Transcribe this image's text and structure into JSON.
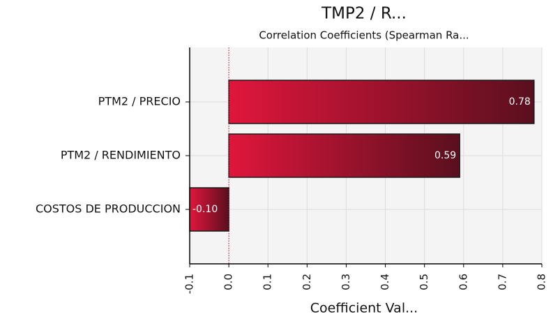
{
  "chart_data": {
    "type": "bar",
    "orientation": "horizontal",
    "title": "TMP2 / R...",
    "subtitle": "Correlation Coefficients (Spearman Ra...",
    "x_label": "Coefficient Val...",
    "categories": [
      "PTM2 / PRECIO",
      "PTM2 / RENDIMIENTO",
      "COSTOS DE PRODUCCION"
    ],
    "values": [
      0.78,
      0.59,
      -0.1
    ],
    "value_labels": [
      "0.78",
      "0.59",
      "-0.10"
    ],
    "color": "#e0163c",
    "xlim": [
      -0.1,
      0.8
    ],
    "xticks": [
      -0.1,
      {
        "value": 0,
        "label": "0.0"
      },
      0.1,
      0.2,
      0.3,
      0.4,
      0.5,
      0.6,
      0.7,
      0.8
    ],
    "grid": true
  }
}
